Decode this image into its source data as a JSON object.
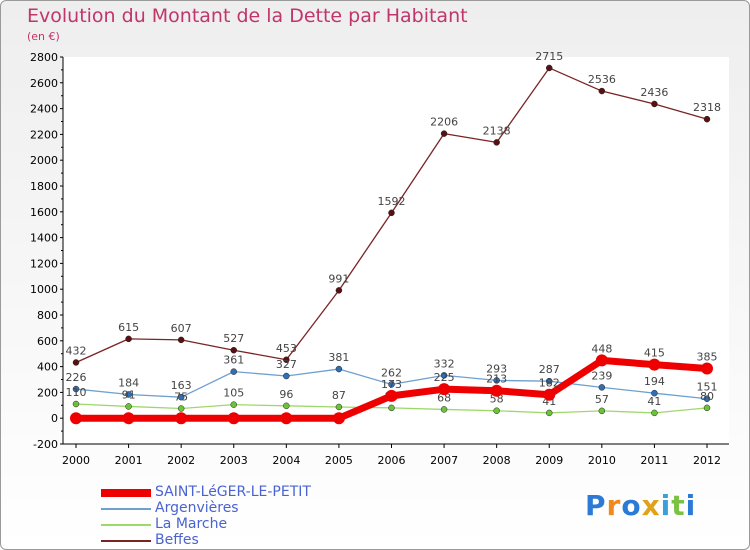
{
  "title": "Evolution du Montant de la Dette par Habitant",
  "subtitle": "(en €)",
  "logo": {
    "text": "Proxiti",
    "colors": [
      "#2b7bd6",
      "#f08a1c",
      "#2b7bd6",
      "#e0a21a",
      "#3aa0d8",
      "#7cc242",
      "#2b7bd6"
    ]
  },
  "chart_data": {
    "type": "line",
    "title": "Evolution du Montant de la Dette par Habitant",
    "ylabel": "(en €)",
    "xlabel": "",
    "x": [
      "2000",
      "2001",
      "2002",
      "2003",
      "2004",
      "2005",
      "2006",
      "2007",
      "2008",
      "2009",
      "2010",
      "2011",
      "2012"
    ],
    "ylim": [
      -200,
      2800
    ],
    "yticks": [
      -200,
      0,
      200,
      400,
      600,
      800,
      1000,
      1200,
      1400,
      1600,
      1800,
      2000,
      2200,
      2400,
      2600,
      2800
    ],
    "grid": false,
    "legend": "bottom-left",
    "series": [
      {
        "name": "Beffes",
        "color": "#7a2424",
        "marker": "#5a1010",
        "width": 1.3,
        "values": [
          432,
          615,
          607,
          527,
          453,
          991,
          1592,
          2206,
          2138,
          2715,
          2536,
          2436,
          2318
        ],
        "labels": [
          "432",
          "615",
          "607",
          "527",
          "453",
          "991",
          "1592",
          "2206",
          "2138",
          "2715",
          "2536",
          "2436",
          "2318"
        ]
      },
      {
        "name": "Argenvières",
        "color": "#6ea0d0",
        "marker": "#2e6fb6",
        "width": 1.3,
        "values": [
          226,
          184,
          163,
          361,
          327,
          381,
          262,
          332,
          293,
          287,
          239,
          194,
          151
        ],
        "labels": [
          "226",
          "184",
          "163",
          "361",
          "327",
          "381",
          "262",
          "332",
          "293",
          "287",
          "239",
          "194",
          "151"
        ]
      },
      {
        "name": "La Marche",
        "color": "#9ed86a",
        "marker": "#6cc23a",
        "width": 1.3,
        "values": [
          110,
          91,
          75,
          105,
          96,
          87,
          80,
          68,
          58,
          41,
          57,
          41,
          80
        ],
        "labels": [
          "110",
          "91",
          "75",
          "105",
          "96",
          "87",
          "80",
          "68",
          "58",
          "41",
          "57",
          "41",
          "80"
        ]
      },
      {
        "name": "SAINT-LéGER-LE-PETIT",
        "color": "#ee0000",
        "marker": "#ee0000",
        "width": 7,
        "values": [
          0,
          0,
          0,
          0,
          0,
          0,
          173,
          225,
          213,
          182,
          448,
          415,
          385
        ],
        "labels": [
          "",
          "",
          "",
          "",
          "",
          "",
          "173",
          "225",
          "213",
          "182",
          "448",
          "415",
          "385"
        ]
      }
    ],
    "legend_order": [
      "SAINT-LéGER-LE-PETIT",
      "Argenvières",
      "La Marche",
      "Beffes"
    ]
  }
}
